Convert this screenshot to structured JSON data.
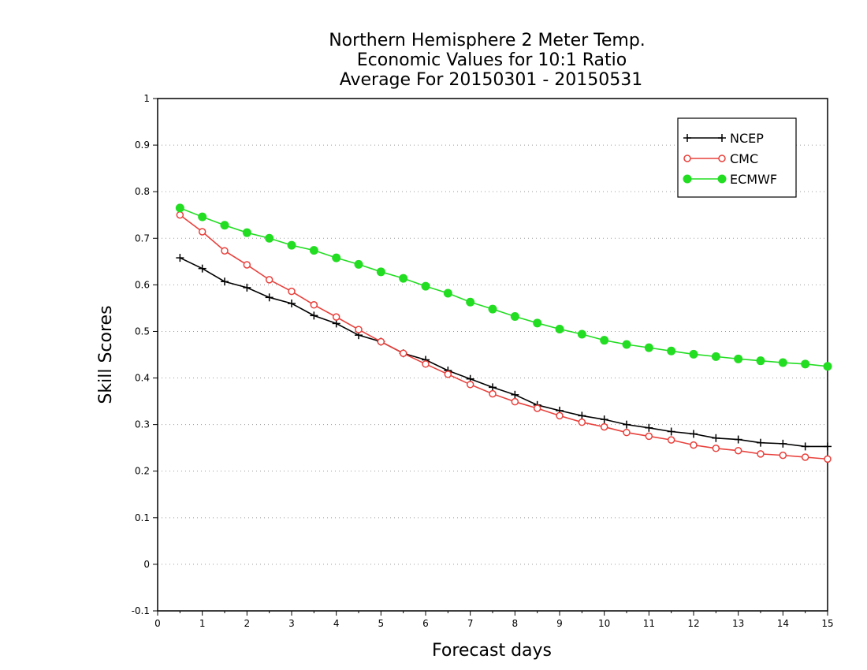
{
  "chart_data": {
    "type": "line",
    "title": [
      "Northern Hemisphere 2 Meter Temp.",
      "Economic Values for 10:1 Ratio",
      "Average For 20150301 - 20150531"
    ],
    "xlabel": "Forecast days",
    "ylabel": "Skill Scores",
    "xlim": [
      0,
      15
    ],
    "ylim": [
      -0.1,
      1
    ],
    "xticks": [
      "0",
      "1",
      "2",
      "3",
      "4",
      "5",
      "6",
      "7",
      "8",
      "9",
      "10",
      "11",
      "12",
      "13",
      "14",
      "15"
    ],
    "yticks": [
      "-0.1",
      "0",
      "0.1",
      "0.2",
      "0.3",
      "0.4",
      "0.5",
      "0.6",
      "0.7",
      "0.8",
      "0.9",
      "1"
    ],
    "grid": "horizontal dotted",
    "legend_position": "top-right",
    "x": [
      0.5,
      1,
      1.5,
      2,
      2.5,
      3,
      3.5,
      4,
      4.5,
      5,
      5.5,
      6,
      6.5,
      7,
      7.5,
      8,
      8.5,
      9,
      9.5,
      10,
      10.5,
      11,
      11.5,
      12,
      12.5,
      13,
      13.5,
      14,
      14.5,
      15
    ],
    "series": [
      {
        "name": "NCEP",
        "color": "#000000",
        "marker": "plus",
        "values": [
          0.658,
          0.635,
          0.607,
          0.594,
          0.573,
          0.56,
          0.534,
          0.517,
          0.492,
          0.478,
          0.453,
          0.439,
          0.416,
          0.398,
          0.38,
          0.364,
          0.342,
          0.33,
          0.319,
          0.311,
          0.3,
          0.293,
          0.285,
          0.28,
          0.271,
          0.268,
          0.261,
          0.259,
          0.253,
          0.253
        ]
      },
      {
        "name": "CMC",
        "color": "#e8413c",
        "marker": "open-circle",
        "values": [
          0.75,
          0.714,
          0.673,
          0.643,
          0.611,
          0.586,
          0.557,
          0.531,
          0.504,
          0.478,
          0.453,
          0.43,
          0.408,
          0.386,
          0.366,
          0.349,
          0.335,
          0.319,
          0.305,
          0.295,
          0.283,
          0.275,
          0.267,
          0.256,
          0.249,
          0.244,
          0.237,
          0.234,
          0.23,
          0.226
        ]
      },
      {
        "name": "ECMWF",
        "color": "#22dd22",
        "marker": "filled-circle",
        "values": [
          0.765,
          0.746,
          0.728,
          0.712,
          0.7,
          0.685,
          0.674,
          0.658,
          0.644,
          0.628,
          0.614,
          0.597,
          0.582,
          0.563,
          0.548,
          0.532,
          0.518,
          0.505,
          0.494,
          0.481,
          0.472,
          0.465,
          0.458,
          0.451,
          0.446,
          0.441,
          0.437,
          0.433,
          0.43,
          0.425
        ]
      }
    ]
  }
}
